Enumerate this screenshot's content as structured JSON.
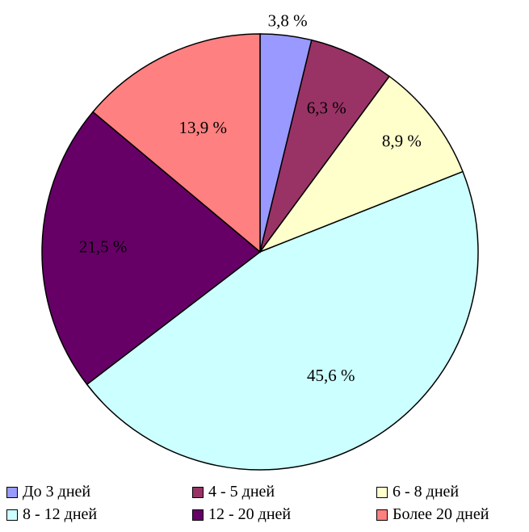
{
  "chart_data": {
    "type": "pie",
    "slices": [
      {
        "name": "До 3 дней",
        "value": 3.8,
        "label": "3,8 %",
        "color": "#9999ff"
      },
      {
        "name": "4 - 5 дней",
        "value": 6.3,
        "label": "6,3 %",
        "color": "#993366"
      },
      {
        "name": "6 - 8 дней",
        "value": 8.9,
        "label": "8,9 %",
        "color": "#ffffcc"
      },
      {
        "name": "8 - 12 дней",
        "value": 45.6,
        "label": "45,6 %",
        "color": "#ccffff"
      },
      {
        "name": "12 - 20 дней",
        "value": 21.5,
        "label": "21,5 %",
        "color": "#660066"
      },
      {
        "name": "Более 20 дней",
        "value": 13.9,
        "label": "13,9 %",
        "color": "#ff8080"
      }
    ],
    "start_angle": "12 o'clock",
    "direction": "clockwise",
    "legend_position": "bottom"
  }
}
